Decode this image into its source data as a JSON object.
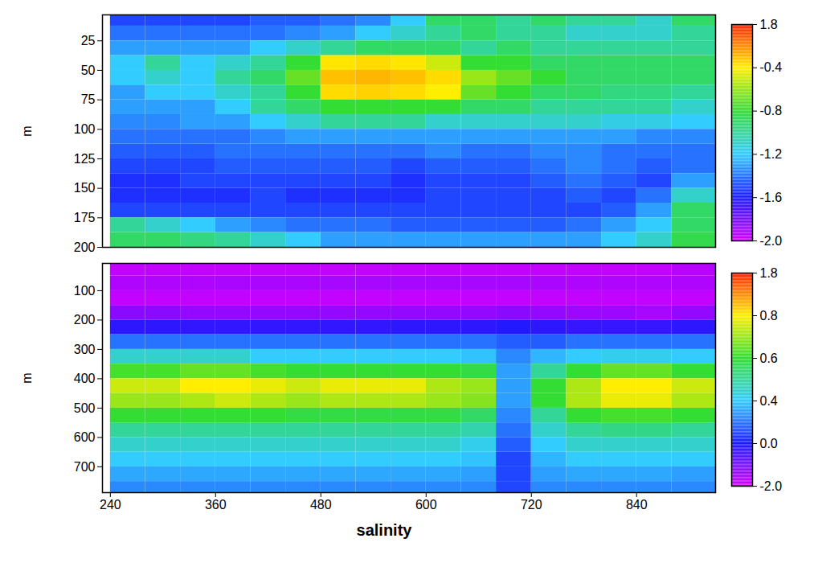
{
  "chart_data": [
    {
      "type": "heatmap",
      "y_label": "m",
      "tick_labels": "y",
      "xlim": [
        231,
        930
      ],
      "ylim": [
        3,
        200
      ],
      "yticks": [
        25,
        50,
        75,
        100,
        125,
        150,
        175,
        200
      ],
      "x_edges": [
        240,
        280,
        320,
        360,
        400,
        440,
        480,
        520,
        560,
        600,
        640,
        680,
        720,
        760,
        800,
        840,
        880,
        930
      ],
      "y_edges": [
        3,
        12.5,
        25,
        37.5,
        50,
        62.5,
        75,
        87.5,
        100,
        112.5,
        125,
        137.5,
        150,
        162.5,
        175,
        187.5,
        200
      ],
      "cells": [
        [
          -1.5,
          -1.5,
          -1.5,
          -1.5,
          -1.45,
          -1.45,
          -1.4,
          -1.35,
          -1.2,
          -0.9,
          -0.9,
          -1.0,
          -0.9,
          -1.0,
          -1.0,
          -1.1,
          -0.9
        ],
        [
          -1.4,
          -1.4,
          -1.4,
          -1.4,
          -1.4,
          -1.35,
          -1.3,
          -1.2,
          -1.1,
          -1.0,
          -0.9,
          -1.0,
          -1.0,
          -1.1,
          -1.1,
          -1.1,
          -1.0
        ],
        [
          -1.3,
          -1.3,
          -1.3,
          -1.3,
          -1.2,
          -1.1,
          -1.0,
          -0.9,
          -0.9,
          -0.9,
          -1.0,
          -0.9,
          -1.0,
          -1.0,
          -1.0,
          -1.0,
          -1.0
        ],
        [
          -1.2,
          -1.0,
          -1.2,
          -1.1,
          -1.0,
          -0.8,
          -0.3,
          -0.2,
          -0.3,
          -0.5,
          -0.8,
          -0.8,
          -0.9,
          -0.9,
          -0.9,
          -0.9,
          -0.9
        ],
        [
          -1.2,
          -1.1,
          -1.2,
          -1.0,
          -0.9,
          -0.7,
          0.1,
          0.2,
          0.1,
          -0.2,
          -0.6,
          -0.7,
          -0.8,
          -0.9,
          -0.9,
          -0.9,
          -0.9
        ],
        [
          -1.3,
          -1.2,
          -1.2,
          -1.1,
          -1.0,
          -0.8,
          -0.2,
          -0.1,
          -0.2,
          -0.4,
          -0.7,
          -0.8,
          -0.9,
          -0.9,
          -0.95,
          -0.95,
          -1.0
        ],
        [
          -1.3,
          -1.3,
          -1.3,
          -1.2,
          -1.0,
          -0.9,
          -0.8,
          -0.8,
          -0.8,
          -0.8,
          -0.9,
          -0.9,
          -1.0,
          -1.0,
          -1.0,
          -1.0,
          -1.1
        ],
        [
          -1.35,
          -1.35,
          -1.3,
          -1.3,
          -1.2,
          -1.1,
          -1.0,
          -1.0,
          -1.0,
          -1.1,
          -1.1,
          -1.1,
          -1.1,
          -1.1,
          -1.15,
          -1.15,
          -1.2
        ],
        [
          -1.4,
          -1.4,
          -1.4,
          -1.4,
          -1.35,
          -1.3,
          -1.3,
          -1.3,
          -1.3,
          -1.3,
          -1.3,
          -1.3,
          -1.3,
          -1.3,
          -1.3,
          -1.35,
          -1.35
        ],
        [
          -1.45,
          -1.45,
          -1.45,
          -1.4,
          -1.4,
          -1.4,
          -1.4,
          -1.4,
          -1.4,
          -1.35,
          -1.4,
          -1.4,
          -1.35,
          -1.35,
          -1.4,
          -1.4,
          -1.4
        ],
        [
          -1.5,
          -1.5,
          -1.5,
          -1.45,
          -1.45,
          -1.45,
          -1.45,
          -1.45,
          -1.5,
          -1.45,
          -1.45,
          -1.45,
          -1.4,
          -1.35,
          -1.4,
          -1.45,
          -1.4
        ],
        [
          -1.55,
          -1.55,
          -1.5,
          -1.5,
          -1.5,
          -1.5,
          -1.5,
          -1.5,
          -1.55,
          -1.5,
          -1.5,
          -1.5,
          -1.45,
          -1.4,
          -1.45,
          -1.5,
          -1.3
        ],
        [
          -1.55,
          -1.55,
          -1.55,
          -1.55,
          -1.5,
          -1.55,
          -1.55,
          -1.55,
          -1.55,
          -1.5,
          -1.5,
          -1.5,
          -1.5,
          -1.45,
          -1.5,
          -1.4,
          -1.1
        ],
        [
          -1.5,
          -1.5,
          -1.5,
          -1.5,
          -1.5,
          -1.5,
          -1.5,
          -1.5,
          -1.5,
          -1.5,
          -1.5,
          -1.5,
          -1.5,
          -1.5,
          -1.45,
          -1.3,
          -0.9
        ],
        [
          -1.0,
          -1.1,
          -1.2,
          -1.3,
          -1.35,
          -1.4,
          -1.4,
          -1.4,
          -1.45,
          -1.45,
          -1.45,
          -1.45,
          -1.45,
          -1.4,
          -1.3,
          -1.2,
          -0.9
        ],
        [
          -0.9,
          -0.9,
          -0.95,
          -1.0,
          -1.1,
          -1.2,
          -1.3,
          -1.3,
          -1.3,
          -1.3,
          -1.3,
          -1.3,
          -1.3,
          -1.3,
          -1.2,
          -1.1,
          -0.85
        ]
      ],
      "colorbar": {
        "range": [
          -2.0,
          1.8
        ],
        "ticks": [
          1.8,
          -0.4,
          -0.8,
          -1.2,
          -1.6,
          {
            "value": -2.0,
            "label": "-2.0"
          }
        ]
      }
    },
    {
      "type": "heatmap",
      "x_label": "salinity",
      "y_label": "m",
      "xlim": [
        231,
        930
      ],
      "xticks": [
        240,
        360,
        480,
        600,
        720,
        840
      ],
      "ylim": [
        7,
        788
      ],
      "yticks": [
        100,
        200,
        300,
        400,
        500,
        600,
        700
      ],
      "x_edges": [
        240,
        280,
        320,
        360,
        400,
        440,
        480,
        520,
        560,
        600,
        640,
        680,
        720,
        760,
        800,
        840,
        880,
        930
      ],
      "y_edges": [
        7,
        50,
        100,
        150,
        200,
        250,
        300,
        350,
        400,
        450,
        500,
        550,
        600,
        650,
        700,
        750,
        788
      ],
      "cells": [
        [
          -1.8,
          -1.8,
          -1.8,
          -1.8,
          -1.8,
          -1.8,
          -1.8,
          -1.8,
          -1.8,
          -1.8,
          -1.8,
          -1.8,
          -1.8,
          -1.8,
          -1.8,
          -1.8,
          -1.7
        ],
        [
          -1.6,
          -1.6,
          -1.6,
          -1.55,
          -1.55,
          -1.55,
          -1.5,
          -1.5,
          -1.5,
          -1.5,
          -1.5,
          -1.5,
          -1.55,
          -1.6,
          -1.6,
          -1.6,
          -1.6
        ],
        [
          -1.8,
          -1.8,
          -1.8,
          -1.8,
          -1.8,
          -1.8,
          -1.8,
          -1.8,
          -1.8,
          -1.8,
          -1.8,
          -1.8,
          -1.8,
          -1.8,
          -1.8,
          -1.8,
          -1.8
        ],
        [
          -1.2,
          -1.2,
          -1.3,
          -1.3,
          -1.3,
          -1.3,
          -1.3,
          -1.3,
          -1.3,
          -1.3,
          -1.3,
          -1.2,
          -1.3,
          -1.4,
          -1.4,
          -1.5,
          -1.3
        ],
        [
          -0.2,
          -0.2,
          -0.25,
          -0.25,
          -0.25,
          -0.25,
          -0.25,
          -0.25,
          -0.2,
          -0.2,
          -0.2,
          -0.1,
          -0.2,
          -0.3,
          -0.3,
          -0.3,
          -0.2
        ],
        [
          0.2,
          0.2,
          0.2,
          0.2,
          0.2,
          0.2,
          0.2,
          0.2,
          0.2,
          0.2,
          0.2,
          0.15,
          0.15,
          0.2,
          0.2,
          0.2,
          0.2
        ],
        [
          0.45,
          0.45,
          0.45,
          0.45,
          0.4,
          0.4,
          0.4,
          0.4,
          0.4,
          0.4,
          0.38,
          0.25,
          0.35,
          0.4,
          0.42,
          0.42,
          0.4
        ],
        [
          0.62,
          0.62,
          0.65,
          0.65,
          0.62,
          0.6,
          0.6,
          0.6,
          0.6,
          0.6,
          0.58,
          0.3,
          0.5,
          0.6,
          0.65,
          0.65,
          0.6
        ],
        [
          0.75,
          0.75,
          0.8,
          0.8,
          0.78,
          0.75,
          0.78,
          0.78,
          0.78,
          0.72,
          0.7,
          0.3,
          0.6,
          0.72,
          0.8,
          0.8,
          0.75
        ],
        [
          0.7,
          0.7,
          0.72,
          0.75,
          0.72,
          0.7,
          0.72,
          0.72,
          0.72,
          0.7,
          0.68,
          0.3,
          0.6,
          0.72,
          0.78,
          0.78,
          0.72
        ],
        [
          0.6,
          0.6,
          0.6,
          0.6,
          0.6,
          0.58,
          0.58,
          0.58,
          0.58,
          0.58,
          0.55,
          0.25,
          0.5,
          0.6,
          0.62,
          0.62,
          0.6
        ],
        [
          0.5,
          0.5,
          0.5,
          0.5,
          0.5,
          0.5,
          0.5,
          0.5,
          0.5,
          0.5,
          0.48,
          0.2,
          0.45,
          0.5,
          0.52,
          0.52,
          0.5
        ],
        [
          0.45,
          0.45,
          0.45,
          0.45,
          0.45,
          0.45,
          0.45,
          0.45,
          0.45,
          0.45,
          0.42,
          0.15,
          0.4,
          0.45,
          0.45,
          0.45,
          0.45
        ],
        [
          0.4,
          0.4,
          0.4,
          0.4,
          0.4,
          0.4,
          0.4,
          0.4,
          0.4,
          0.4,
          0.38,
          0.1,
          0.35,
          0.4,
          0.4,
          0.4,
          0.4
        ],
        [
          0.32,
          0.32,
          0.32,
          0.32,
          0.32,
          0.32,
          0.32,
          0.32,
          0.32,
          0.32,
          0.3,
          0.1,
          0.3,
          0.32,
          0.32,
          0.32,
          0.3
        ],
        [
          0.25,
          0.25,
          0.25,
          0.25,
          0.25,
          0.25,
          0.25,
          0.25,
          0.25,
          0.25,
          0.25,
          0.1,
          0.25,
          0.25,
          0.25,
          0.25,
          0.25
        ]
      ],
      "colorbar": {
        "range": [
          -2.0,
          1.8
        ],
        "ticks": [
          1.8,
          0.8,
          0.6,
          0.4,
          {
            "value": 0.0,
            "label": "0.0"
          },
          {
            "value": -2.0,
            "label": "-2.0"
          }
        ]
      }
    }
  ]
}
